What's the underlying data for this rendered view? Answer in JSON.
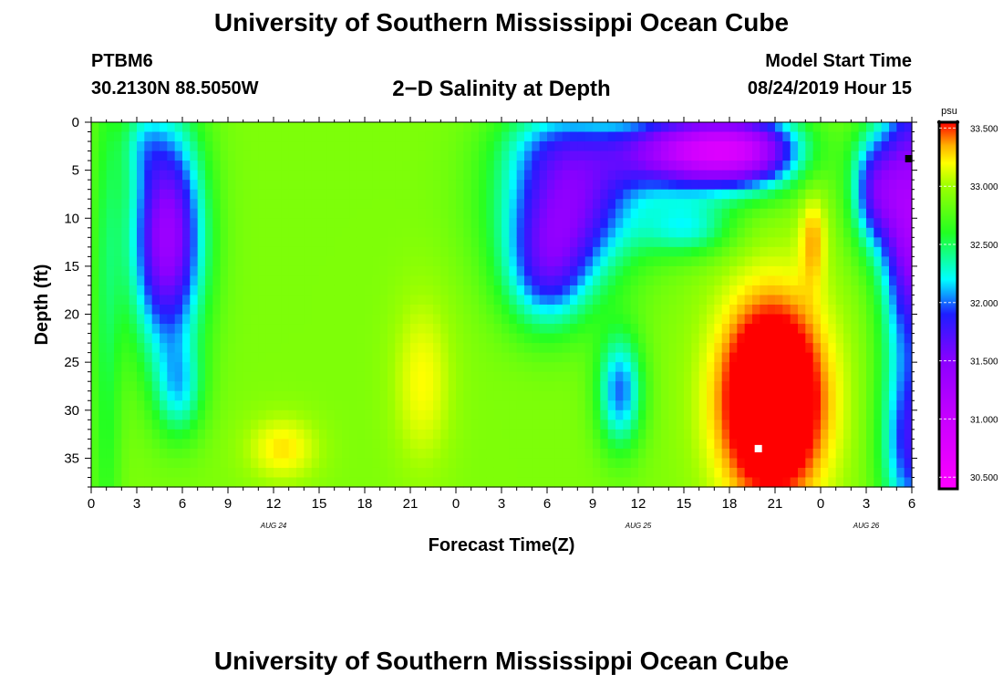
{
  "header": {
    "title": "University of Southern Mississippi Ocean Cube",
    "station_id": "PTBM6",
    "station_coords": "30.2130N 88.5050W",
    "subtitle": "2−D Salinity at Depth",
    "model_start_label": "Model Start Time",
    "model_start_value": "08/24/2019 Hour 15"
  },
  "footer": {
    "title": "University of Southern Mississippi Ocean Cube"
  },
  "chart_data": {
    "type": "heatmap",
    "title": "2−D Salinity at Depth",
    "xlabel": "Forecast Time(Z)",
    "ylabel": "Depth (ft)",
    "x_hours_range": [
      0,
      54
    ],
    "y_range": [
      0,
      38
    ],
    "x_tick_labels": [
      "0",
      "3",
      "6",
      "9",
      "12",
      "15",
      "18",
      "21",
      "0",
      "3",
      "6",
      "9",
      "12",
      "15",
      "18",
      "21",
      "0",
      "3",
      "6"
    ],
    "date_labels": [
      {
        "text": "AUG 24",
        "hour": 12
      },
      {
        "text": "AUG 25",
        "hour": 36
      },
      {
        "text": "AUG 26",
        "hour": 51
      }
    ],
    "y_ticks": [
      0,
      5,
      10,
      15,
      20,
      25,
      30,
      35
    ],
    "colorbar": {
      "unit": "psu",
      "min": 30.4,
      "max": 33.55,
      "tick_values": [
        30.5,
        31.0,
        31.5,
        32.0,
        32.5,
        33.0,
        33.5
      ],
      "tick_labels": [
        "30.500",
        "31.000",
        "31.500",
        "32.000",
        "32.500",
        "33.000",
        "33.500"
      ],
      "stops": [
        {
          "value": 30.4,
          "color": "#ff00ff"
        },
        {
          "value": 31.0,
          "color": "#c800ff"
        },
        {
          "value": 31.5,
          "color": "#8a00ff"
        },
        {
          "value": 31.9,
          "color": "#1e1eff"
        },
        {
          "value": 32.2,
          "color": "#00ffff"
        },
        {
          "value": 32.6,
          "color": "#22ff22"
        },
        {
          "value": 33.0,
          "color": "#9cff00"
        },
        {
          "value": 33.2,
          "color": "#ffff00"
        },
        {
          "value": 33.35,
          "color": "#ffb000"
        },
        {
          "value": 33.55,
          "color": "#ff0000"
        }
      ]
    },
    "features": [
      {
        "hour": 5.0,
        "depth": 12,
        "sx": 2.4,
        "sy": 12,
        "d": -1.55
      },
      {
        "hour": 5.8,
        "depth": 28,
        "sx": 1.6,
        "sy": 5,
        "d": -0.55
      },
      {
        "hour": 3.3,
        "depth": 2,
        "sx": 1.4,
        "sy": 4,
        "d": -0.3
      },
      {
        "hour": 1.0,
        "depth": 20,
        "sx": 1.0,
        "sy": 30,
        "d": -0.35
      },
      {
        "hour": 12.6,
        "depth": 34,
        "sx": 2.4,
        "sy": 3.5,
        "d": 0.35
      },
      {
        "hour": 21.8,
        "depth": 27,
        "sx": 2.0,
        "sy": 9,
        "d": 0.3
      },
      {
        "hour": 30.0,
        "depth": 16,
        "sx": 2.8,
        "sy": 6,
        "d": -0.8
      },
      {
        "hour": 30.0,
        "depth": 2,
        "sx": 3.5,
        "sy": 4,
        "d": -0.25
      },
      {
        "hour": 31.5,
        "depth": 8,
        "sx": 4.5,
        "sy": 8,
        "d": -1.3
      },
      {
        "hour": 34.8,
        "depth": 28,
        "sx": 1.5,
        "sy": 6,
        "d": -0.9
      },
      {
        "hour": 38.0,
        "depth": 3,
        "sx": 4.5,
        "sy": 4,
        "d": -0.9
      },
      {
        "hour": 41.5,
        "depth": 3,
        "sx": 4.5,
        "sy": 4,
        "d": -1.35
      },
      {
        "hour": 44.0,
        "depth": 3,
        "sx": 3.0,
        "sy": 4,
        "d": -0.6
      },
      {
        "hour": 39.3,
        "depth": 11,
        "sx": 3.0,
        "sy": 3,
        "d": -0.6
      },
      {
        "hour": 44.8,
        "depth": 29,
        "sx": 3.6,
        "sy": 11,
        "d": 1.25
      },
      {
        "hour": 47.5,
        "depth": 12,
        "sx": 0.9,
        "sy": 5,
        "d": 0.4
      },
      {
        "hour": 51.5,
        "depth": 7,
        "sx": 1.6,
        "sy": 6,
        "d": -1.0
      },
      {
        "hour": 54.0,
        "depth": 10,
        "sx": 2.0,
        "sy": 15,
        "d": -1.6
      },
      {
        "hour": 54.0,
        "depth": 34,
        "sx": 2.0,
        "sy": 9,
        "d": -1.0
      }
    ],
    "base_value": 32.9,
    "markers": [
      {
        "hour": 43.9,
        "depth": 34,
        "shape": "square",
        "color": "#ffffff"
      },
      {
        "hour": 53.8,
        "depth": 3.8,
        "shape": "square",
        "color": "#000000"
      }
    ]
  }
}
